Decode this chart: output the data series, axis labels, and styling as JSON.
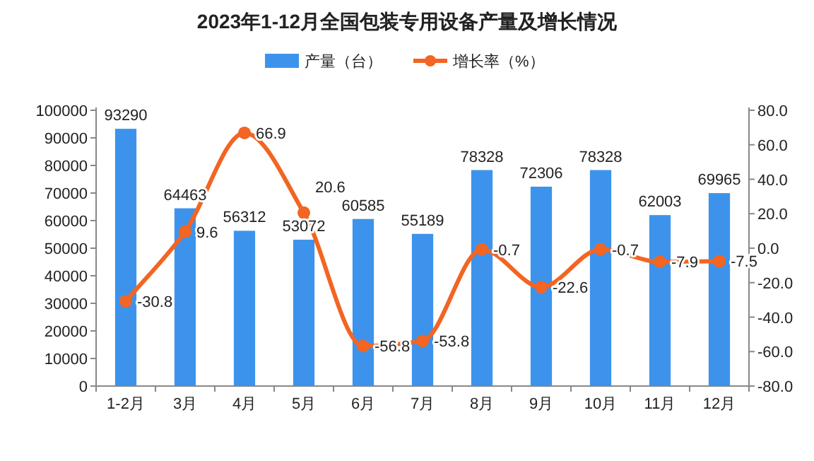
{
  "chart_data": {
    "type": "bar",
    "title": "2023年1-12月全国包装专用设备产量及增长情况",
    "categories": [
      "1-2月",
      "3月",
      "4月",
      "5月",
      "6月",
      "7月",
      "8月",
      "9月",
      "10月",
      "11月",
      "12月"
    ],
    "series": [
      {
        "name": "产量（台）",
        "color": "#3d93ec",
        "values": [
          93290,
          64463,
          56312,
          53072,
          60585,
          55189,
          78328,
          72306,
          78328,
          62003,
          69965
        ]
      },
      {
        "name": "增长率（%）",
        "type": "line",
        "axis": "y2",
        "color": "#f26522",
        "values": [
          -30.8,
          9.6,
          66.9,
          20.6,
          -56.8,
          -53.8,
          -0.7,
          -22.6,
          -0.7,
          -7.9,
          -7.5
        ]
      }
    ],
    "ylim": [
      0,
      100000
    ],
    "yticks": [
      0,
      10000,
      20000,
      30000,
      40000,
      50000,
      60000,
      70000,
      80000,
      90000,
      100000
    ],
    "y2lim": [
      -80,
      80
    ],
    "y2ticks": [
      {
        "value": -80,
        "label": "-80.0"
      },
      {
        "value": -60,
        "label": "-60.0"
      },
      {
        "value": -40,
        "label": "-40.0"
      },
      {
        "value": -20,
        "label": "-20.0"
      },
      {
        "value": 0,
        "label": "0.0"
      },
      {
        "value": 20,
        "label": "20.0"
      },
      {
        "value": 40,
        "label": "40.0"
      },
      {
        "value": 60,
        "label": "60.0"
      },
      {
        "value": 80,
        "label": "80.0"
      }
    ],
    "data_labels": true,
    "legend": "top",
    "marker": "circle",
    "grid": false
  }
}
